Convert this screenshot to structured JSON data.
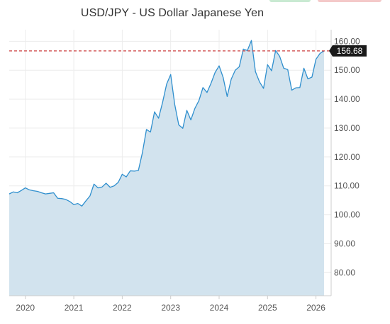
{
  "header": {
    "accent_green": "#c9ead2",
    "accent_red": "#f4c9c9"
  },
  "chart_data": {
    "type": "area",
    "title": "USD/JPY - US Dollar Japanese Yen",
    "xlabel": "",
    "ylabel": "",
    "x_range": [
      "2019-09",
      "2026-03"
    ],
    "ylim": [
      72,
      164
    ],
    "y_ticks": [
      "80.00",
      "90.00",
      "100.00",
      "110.00",
      "120.00",
      "130.00",
      "140.00",
      "150.00",
      "160.00"
    ],
    "x_ticks": [
      "2020",
      "2021",
      "2022",
      "2023",
      "2024",
      "2025",
      "2026"
    ],
    "grid": true,
    "axis_side": "right",
    "line_color": "#2f8fce",
    "fill_color": "#d2e3ee",
    "reference_line": {
      "value": 156.68,
      "color": "#c62828",
      "style": "dashed"
    },
    "last_value_label": "156.68",
    "last_value_label_color": "#1a1a1a",
    "series": [
      {
        "points": [
          [
            "2019-09",
            107.2
          ],
          [
            "2019-10",
            107.9
          ],
          [
            "2019-11",
            107.6
          ],
          [
            "2019-12",
            108.4
          ],
          [
            "2020-01",
            109.3
          ],
          [
            "2020-02",
            108.6
          ],
          [
            "2020-03",
            108.3
          ],
          [
            "2020-04",
            108.1
          ],
          [
            "2020-05",
            107.6
          ],
          [
            "2020-06",
            107.2
          ],
          [
            "2020-07",
            107.4
          ],
          [
            "2020-08",
            107.6
          ],
          [
            "2020-09",
            105.7
          ],
          [
            "2020-10",
            105.6
          ],
          [
            "2020-11",
            105.3
          ],
          [
            "2020-12",
            104.6
          ],
          [
            "2021-01",
            103.5
          ],
          [
            "2021-02",
            103.9
          ],
          [
            "2021-03",
            103.0
          ],
          [
            "2021-04",
            104.8
          ],
          [
            "2021-05",
            106.5
          ],
          [
            "2021-06",
            110.6
          ],
          [
            "2021-07",
            109.3
          ],
          [
            "2021-08",
            109.6
          ],
          [
            "2021-09",
            110.9
          ],
          [
            "2021-10",
            109.5
          ],
          [
            "2021-11",
            110.0
          ],
          [
            "2021-12",
            111.2
          ],
          [
            "2022-01",
            114.0
          ],
          [
            "2022-02",
            113.1
          ],
          [
            "2022-03",
            115.2
          ],
          [
            "2022-04",
            115.1
          ],
          [
            "2022-05",
            115.3
          ],
          [
            "2022-06",
            121.5
          ],
          [
            "2022-07",
            129.5
          ],
          [
            "2022-08",
            128.6
          ],
          [
            "2022-09",
            135.6
          ],
          [
            "2022-10",
            133.4
          ],
          [
            "2022-11",
            138.9
          ],
          [
            "2022-12",
            145.2
          ],
          [
            "2023-01",
            148.5
          ],
          [
            "2023-02",
            138.2
          ],
          [
            "2023-03",
            131.1
          ],
          [
            "2023-04",
            129.9
          ],
          [
            "2023-05",
            136.1
          ],
          [
            "2023-06",
            132.8
          ],
          [
            "2023-07",
            136.8
          ],
          [
            "2023-08",
            139.5
          ],
          [
            "2023-09",
            144.0
          ],
          [
            "2023-10",
            142.3
          ],
          [
            "2023-11",
            145.5
          ],
          [
            "2023-12",
            149.2
          ],
          [
            "2024-01",
            151.5
          ],
          [
            "2024-02",
            147.5
          ],
          [
            "2024-03",
            140.9
          ],
          [
            "2024-04",
            146.9
          ],
          [
            "2024-05",
            150.0
          ],
          [
            "2024-06",
            151.2
          ],
          [
            "2024-07",
            157.3
          ],
          [
            "2024-08",
            156.8
          ],
          [
            "2024-09",
            160.3
          ],
          [
            "2024-10",
            149.5
          ],
          [
            "2024-11",
            146.0
          ],
          [
            "2024-12",
            143.7
          ],
          [
            "2025-01",
            151.9
          ],
          [
            "2025-02",
            149.8
          ],
          [
            "2025-03",
            156.8
          ],
          [
            "2025-04",
            154.8
          ],
          [
            "2025-05",
            150.7
          ],
          [
            "2025-06",
            150.2
          ],
          [
            "2025-07",
            143.1
          ],
          [
            "2025-08",
            143.9
          ],
          [
            "2025-09",
            144.0
          ],
          [
            "2025-10",
            150.7
          ],
          [
            "2025-11",
            147.0
          ],
          [
            "2025-12",
            147.6
          ],
          [
            "2026-01",
            153.8
          ],
          [
            "2026-02",
            155.8
          ],
          [
            "2026-03",
            156.68
          ]
        ]
      }
    ]
  }
}
